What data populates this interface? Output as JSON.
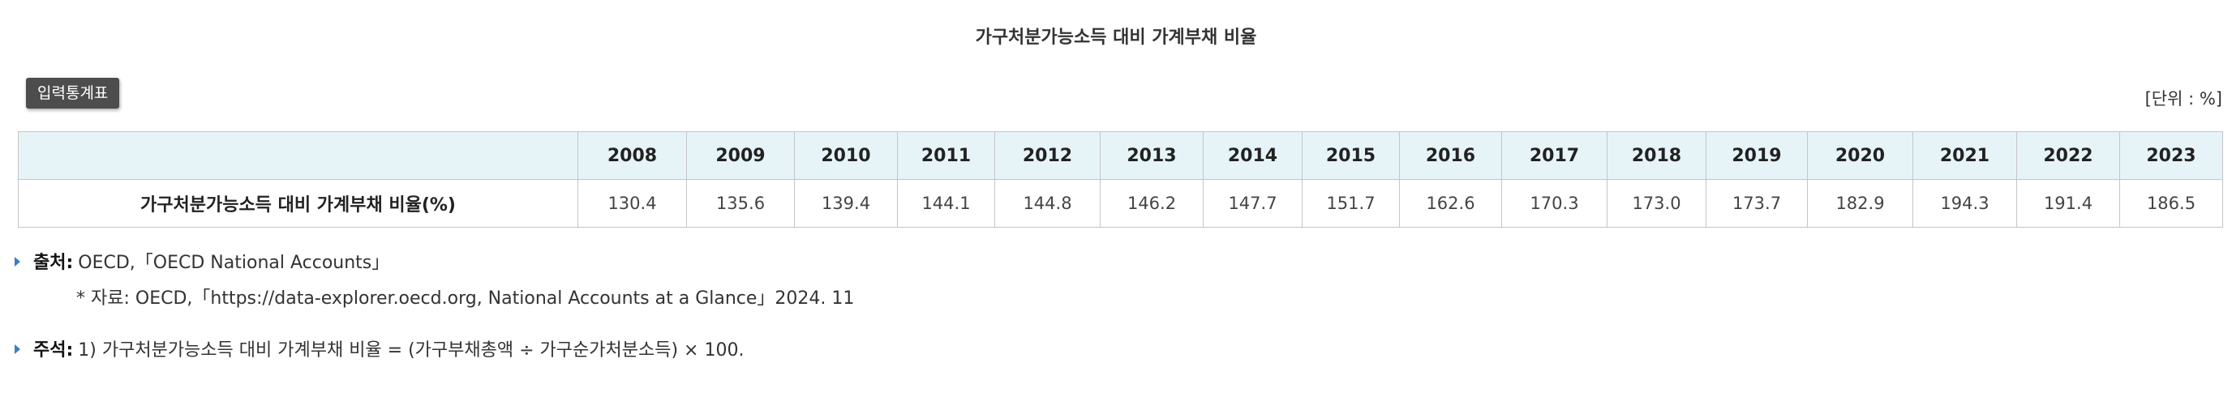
{
  "title": "가구처분가능소득 대비 가계부채 비율",
  "toolbar": {
    "stat_button_label": "입력통계표",
    "unit_label": "[단위 : %]"
  },
  "table": {
    "columns": [
      "",
      "2008",
      "2009",
      "2010",
      "2011",
      "2012",
      "2013",
      "2014",
      "2015",
      "2016",
      "2017",
      "2018",
      "2019",
      "2020",
      "2021",
      "2022",
      "2023"
    ],
    "row_label": "가구처분가능소득 대비 가계부채 비율(%)",
    "values": [
      "130.4",
      "135.6",
      "139.4",
      "144.1",
      "144.8",
      "146.2",
      "147.7",
      "151.7",
      "162.6",
      "170.3",
      "173.0",
      "173.7",
      "182.9",
      "194.3",
      "191.4",
      "186.5"
    ]
  },
  "notes": {
    "source_label": "출처:",
    "source_text": "OECD,「OECD National Accounts」",
    "source_sub": "* 자료: OECD,「https://data-explorer.oecd.org, National Accounts at a Glance」2024. 11",
    "footnote_label": "주석:",
    "footnote_text": "1) 가구처분가능소득 대비 가계부채 비율 = (가구부채총액 ÷ 가구순가처분소득) × 100."
  },
  "colors": {
    "header_bg": "#e6f4f7",
    "button_bg": "#4d4d4d",
    "marker": "#3a7fc4",
    "border": "#c5c5c5"
  }
}
